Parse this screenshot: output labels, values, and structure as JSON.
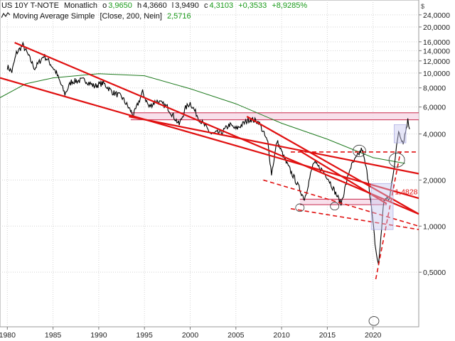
{
  "header": {
    "line1": {
      "symbol": "US 10Y T-NOTE",
      "interval": "Monatlich",
      "open_label": "o",
      "open": "3,9650",
      "high_label": "h",
      "high": "4,3660",
      "low_label": "l",
      "low": "3,9490",
      "close_label": "c",
      "close": "4,3103",
      "change": "+0,3533",
      "change_pct": "+8,9285%"
    },
    "line2": {
      "icon": "moving-average-icon",
      "label": "Moving Average Simple",
      "params": "[Close, 200, Nein]",
      "value": "2,5716"
    }
  },
  "colors": {
    "price": "#000000",
    "trend_lines": "#e01010",
    "moving_average": "#1e7a1e",
    "band_fill": "#f6d8e6",
    "band_edge": "#c8284c",
    "highlight_box": "#c8c8f0",
    "annotation": "#e01010",
    "up_change": "#1a9a1a"
  },
  "chart_data": {
    "type": "line",
    "scale": "log",
    "currency_label": "$",
    "x_ticks": [
      "1980",
      "1985",
      "1990",
      "1995",
      "2000",
      "2005",
      "2010",
      "2015",
      "2020"
    ],
    "y_ticks": [
      "24,0000",
      "20,0000",
      "16,0000",
      "14,0000",
      "12,0000",
      "10,0000",
      "8,0000",
      "6,0000",
      "4,0000",
      "2,0000",
      "1,0000",
      "0,5000"
    ],
    "y_tick_values": [
      24,
      20,
      16,
      14,
      12,
      10,
      8,
      6,
      4,
      2,
      1,
      0.5
    ],
    "xlim": [
      1979.2,
      2025.0
    ],
    "ylim": [
      0.22,
      30
    ],
    "annotation": {
      "label": "1,4828",
      "value": 1.4828
    },
    "series": [
      {
        "name": "US 10Y T-NOTE",
        "x": [
          1980.0,
          1980.5,
          1981.0,
          1981.7,
          1982.3,
          1983.0,
          1984.0,
          1984.5,
          1985.3,
          1986.3,
          1987.0,
          1987.8,
          1988.5,
          1989.5,
          1990.5,
          1991.5,
          1992.5,
          1993.8,
          1994.8,
          1995.5,
          1996.3,
          1997.5,
          1998.8,
          1999.5,
          2000.0,
          2001.0,
          2002.3,
          2003.5,
          2004.3,
          2005.0,
          2006.5,
          2007.5,
          2008.5,
          2008.9,
          2009.5,
          2010.5,
          2011.5,
          2012.5,
          2013.5,
          2014.5,
          2015.0,
          2016.5,
          2017.5,
          2018.8,
          2019.5,
          2020.3,
          2020.6,
          2021.2,
          2021.8,
          2022.5,
          2022.8,
          2023.3,
          2023.8,
          2024.0
        ],
        "values": [
          11.0,
          10.2,
          13.5,
          15.2,
          13.0,
          10.7,
          13.0,
          12.0,
          10.2,
          7.3,
          8.8,
          8.9,
          9.0,
          8.2,
          8.6,
          7.5,
          7.0,
          5.3,
          7.5,
          6.0,
          6.6,
          6.0,
          4.6,
          5.9,
          6.4,
          5.0,
          4.0,
          4.1,
          4.6,
          4.3,
          5.0,
          4.8,
          3.5,
          2.2,
          3.6,
          2.6,
          2.0,
          1.5,
          2.6,
          2.3,
          2.1,
          1.4,
          2.4,
          3.2,
          2.0,
          0.7,
          0.55,
          1.5,
          1.5,
          3.0,
          4.2,
          3.5,
          4.9,
          4.3
        ]
      },
      {
        "name": "Moving Average Simple",
        "x": [
          1979.2,
          1982.0,
          1985.0,
          1990.0,
          1995.0,
          2000.0,
          2005.0,
          2010.0,
          2015.0,
          2020.0,
          2023.5
        ],
        "values": [
          6.9,
          8.5,
          9.3,
          9.9,
          9.6,
          7.9,
          6.3,
          4.7,
          3.7,
          2.8,
          2.57
        ]
      }
    ],
    "trend_lines": [
      {
        "style": "solid",
        "points": [
          [
            1980.8,
            15.8
          ],
          [
            2025.0,
            1.2
          ]
        ]
      },
      {
        "style": "solid",
        "points": [
          [
            1979.2,
            9.3
          ],
          [
            2025.0,
            1.52
          ]
        ]
      },
      {
        "style": "solid",
        "points": [
          [
            1993.3,
            5.2
          ],
          [
            2025.0,
            2.2
          ]
        ]
      },
      {
        "style": "solid",
        "points": [
          [
            2006.2,
            5.2
          ],
          [
            2025.0,
            1.2
          ]
        ]
      },
      {
        "style": "solid",
        "points": [
          [
            2012.0,
            3.1
          ],
          [
            2021.5,
            1.4
          ]
        ]
      },
      {
        "style": "dashed",
        "points": [
          [
            2008.0,
            2.0
          ],
          [
            2025.0,
            1.0
          ]
        ]
      },
      {
        "style": "dashed",
        "points": [
          [
            2011.0,
            1.3
          ],
          [
            2025.0,
            0.95
          ]
        ]
      },
      {
        "style": "dashed",
        "points": [
          [
            2011.0,
            3.05
          ],
          [
            2025.0,
            3.05
          ]
        ]
      },
      {
        "style": "dashed",
        "points": [
          [
            2020.3,
            0.45
          ],
          [
            2023.0,
            3.05
          ]
        ]
      }
    ],
    "horizontal_bands": [
      {
        "low": 4.95,
        "high": 5.5,
        "from": 1993.5,
        "to": 2025.0
      },
      {
        "low": 1.38,
        "high": 1.5,
        "from": 2012.0,
        "to": 2021.5
      }
    ],
    "grid": true,
    "legend": "top-left"
  }
}
